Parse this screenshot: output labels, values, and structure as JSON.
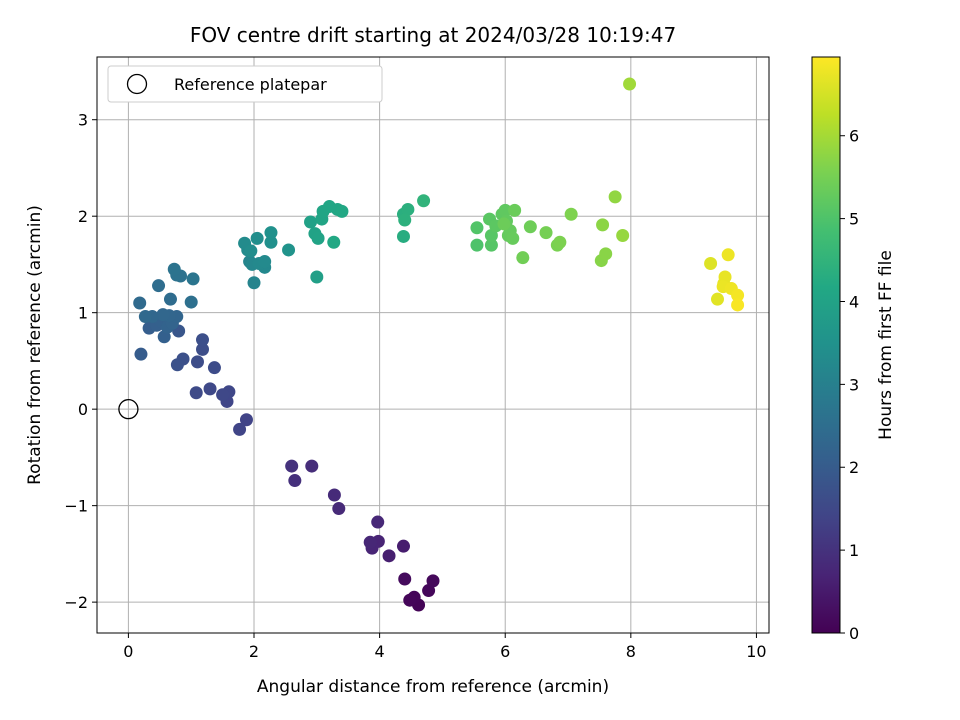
{
  "chart_data": {
    "type": "scatter",
    "title": "FOV centre drift starting at 2024/03/28 10:19:47",
    "xlabel": "Angular distance from reference (arcmin)",
    "ylabel": "Rotation from reference (arcmin)",
    "xlim": [
      -0.5,
      10.2
    ],
    "ylim": [
      -2.32,
      3.65
    ],
    "xticks": [
      0,
      2,
      4,
      6,
      8,
      10
    ],
    "yticks": [
      -2,
      -1,
      0,
      1,
      2,
      3
    ],
    "grid": true,
    "legend": {
      "placement": "top-left",
      "entries": [
        "Reference platepar"
      ]
    },
    "reference_point": {
      "x": 0,
      "y": 0
    },
    "colorbar": {
      "label": "Hours from first FF file",
      "colormap": "viridis",
      "range": [
        0,
        6.95
      ],
      "ticks": [
        0,
        1,
        2,
        3,
        4,
        5,
        6
      ]
    },
    "points": [
      {
        "x": 4.62,
        "y": -2.03,
        "h": 0.05
      },
      {
        "x": 4.55,
        "y": -1.95,
        "h": 0.08
      },
      {
        "x": 4.48,
        "y": -1.98,
        "h": 0.1
      },
      {
        "x": 4.78,
        "y": -1.88,
        "h": 0.12
      },
      {
        "x": 4.85,
        "y": -1.78,
        "h": 0.15
      },
      {
        "x": 4.4,
        "y": -1.76,
        "h": 0.2
      },
      {
        "x": 4.38,
        "y": -1.42,
        "h": 0.55
      },
      {
        "x": 4.15,
        "y": -1.52,
        "h": 0.6
      },
      {
        "x": 3.98,
        "y": -1.37,
        "h": 0.7
      },
      {
        "x": 3.88,
        "y": -1.44,
        "h": 0.72
      },
      {
        "x": 3.85,
        "y": -1.38,
        "h": 0.75
      },
      {
        "x": 3.97,
        "y": -1.17,
        "h": 0.78
      },
      {
        "x": 3.35,
        "y": -1.03,
        "h": 0.82
      },
      {
        "x": 3.28,
        "y": -0.89,
        "h": 0.85
      },
      {
        "x": 2.92,
        "y": -0.59,
        "h": 0.9
      },
      {
        "x": 2.65,
        "y": -0.74,
        "h": 0.95
      },
      {
        "x": 2.6,
        "y": -0.59,
        "h": 1.0
      },
      {
        "x": 1.88,
        "y": -0.11,
        "h": 1.4
      },
      {
        "x": 1.77,
        "y": -0.21,
        "h": 1.42
      },
      {
        "x": 1.57,
        "y": 0.08,
        "h": 1.45
      },
      {
        "x": 1.6,
        "y": 0.18,
        "h": 1.48
      },
      {
        "x": 1.5,
        "y": 0.15,
        "h": 1.5
      },
      {
        "x": 1.3,
        "y": 0.21,
        "h": 1.52
      },
      {
        "x": 1.08,
        "y": 0.17,
        "h": 1.55
      },
      {
        "x": 1.37,
        "y": 0.43,
        "h": 1.6
      },
      {
        "x": 1.1,
        "y": 0.49,
        "h": 1.62
      },
      {
        "x": 1.18,
        "y": 0.62,
        "h": 1.65
      },
      {
        "x": 1.18,
        "y": 0.72,
        "h": 1.68
      },
      {
        "x": 0.87,
        "y": 0.52,
        "h": 1.7
      },
      {
        "x": 0.78,
        "y": 0.46,
        "h": 1.72
      },
      {
        "x": 0.8,
        "y": 0.81,
        "h": 1.85
      },
      {
        "x": 0.2,
        "y": 0.57,
        "h": 2.0
      },
      {
        "x": 0.33,
        "y": 0.84,
        "h": 2.05
      },
      {
        "x": 0.45,
        "y": 0.87,
        "h": 2.1
      },
      {
        "x": 0.57,
        "y": 0.75,
        "h": 2.12
      },
      {
        "x": 0.52,
        "y": 0.91,
        "h": 2.15
      },
      {
        "x": 0.62,
        "y": 0.85,
        "h": 2.2
      },
      {
        "x": 0.7,
        "y": 0.89,
        "h": 2.22
      },
      {
        "x": 0.77,
        "y": 0.96,
        "h": 2.25
      },
      {
        "x": 0.65,
        "y": 0.97,
        "h": 2.28
      },
      {
        "x": 0.55,
        "y": 0.98,
        "h": 2.3
      },
      {
        "x": 0.38,
        "y": 0.96,
        "h": 2.32
      },
      {
        "x": 0.27,
        "y": 0.96,
        "h": 2.35
      },
      {
        "x": 0.18,
        "y": 1.1,
        "h": 2.4
      },
      {
        "x": 0.67,
        "y": 1.14,
        "h": 2.45
      },
      {
        "x": 0.48,
        "y": 1.28,
        "h": 2.48
      },
      {
        "x": 1.0,
        "y": 1.11,
        "h": 2.55
      },
      {
        "x": 0.77,
        "y": 1.39,
        "h": 2.6
      },
      {
        "x": 0.83,
        "y": 1.38,
        "h": 2.62
      },
      {
        "x": 0.73,
        "y": 1.45,
        "h": 2.65
      },
      {
        "x": 1.03,
        "y": 1.35,
        "h": 2.7
      },
      {
        "x": 2.0,
        "y": 1.31,
        "h": 3.1
      },
      {
        "x": 1.93,
        "y": 1.53,
        "h": 3.15
      },
      {
        "x": 1.97,
        "y": 1.5,
        "h": 3.2
      },
      {
        "x": 2.17,
        "y": 1.47,
        "h": 3.22
      },
      {
        "x": 2.08,
        "y": 1.51,
        "h": 3.25
      },
      {
        "x": 2.17,
        "y": 1.53,
        "h": 3.28
      },
      {
        "x": 1.9,
        "y": 1.65,
        "h": 3.3
      },
      {
        "x": 1.85,
        "y": 1.72,
        "h": 3.32
      },
      {
        "x": 1.95,
        "y": 1.64,
        "h": 3.35
      },
      {
        "x": 2.05,
        "y": 1.77,
        "h": 3.4
      },
      {
        "x": 2.27,
        "y": 1.73,
        "h": 3.45
      },
      {
        "x": 2.27,
        "y": 1.83,
        "h": 3.48
      },
      {
        "x": 2.55,
        "y": 1.65,
        "h": 3.55
      },
      {
        "x": 3.0,
        "y": 1.37,
        "h": 3.9
      },
      {
        "x": 2.9,
        "y": 1.94,
        "h": 3.95
      },
      {
        "x": 2.97,
        "y": 1.82,
        "h": 4.0
      },
      {
        "x": 3.02,
        "y": 1.77,
        "h": 4.02
      },
      {
        "x": 3.08,
        "y": 1.97,
        "h": 4.05
      },
      {
        "x": 3.1,
        "y": 2.05,
        "h": 4.08
      },
      {
        "x": 3.2,
        "y": 2.1,
        "h": 4.1
      },
      {
        "x": 3.33,
        "y": 2.07,
        "h": 4.12
      },
      {
        "x": 3.4,
        "y": 2.05,
        "h": 4.15
      },
      {
        "x": 3.27,
        "y": 1.73,
        "h": 4.18
      },
      {
        "x": 4.38,
        "y": 1.79,
        "h": 4.3
      },
      {
        "x": 4.38,
        "y": 2.02,
        "h": 4.35
      },
      {
        "x": 4.45,
        "y": 2.07,
        "h": 4.38
      },
      {
        "x": 4.4,
        "y": 1.96,
        "h": 4.4
      },
      {
        "x": 4.7,
        "y": 2.16,
        "h": 4.5
      },
      {
        "x": 5.55,
        "y": 1.7,
        "h": 5.0
      },
      {
        "x": 5.55,
        "y": 1.88,
        "h": 5.05
      },
      {
        "x": 5.78,
        "y": 1.7,
        "h": 5.1
      },
      {
        "x": 5.78,
        "y": 1.8,
        "h": 5.12
      },
      {
        "x": 5.75,
        "y": 1.97,
        "h": 5.15
      },
      {
        "x": 5.85,
        "y": 1.9,
        "h": 5.18
      },
      {
        "x": 5.95,
        "y": 2.02,
        "h": 5.2
      },
      {
        "x": 6.0,
        "y": 2.06,
        "h": 5.22
      },
      {
        "x": 6.02,
        "y": 1.95,
        "h": 5.25
      },
      {
        "x": 6.05,
        "y": 1.8,
        "h": 5.28
      },
      {
        "x": 6.08,
        "y": 1.85,
        "h": 5.3
      },
      {
        "x": 6.12,
        "y": 1.77,
        "h": 5.32
      },
      {
        "x": 6.15,
        "y": 2.06,
        "h": 5.35
      },
      {
        "x": 5.98,
        "y": 1.92,
        "h": 5.38
      },
      {
        "x": 6.4,
        "y": 1.89,
        "h": 5.4
      },
      {
        "x": 6.28,
        "y": 1.57,
        "h": 5.45
      },
      {
        "x": 6.65,
        "y": 1.83,
        "h": 5.5
      },
      {
        "x": 6.83,
        "y": 1.7,
        "h": 5.55
      },
      {
        "x": 6.87,
        "y": 1.73,
        "h": 5.58
      },
      {
        "x": 7.05,
        "y": 2.02,
        "h": 5.6
      },
      {
        "x": 7.53,
        "y": 1.54,
        "h": 5.7
      },
      {
        "x": 7.6,
        "y": 1.61,
        "h": 5.72
      },
      {
        "x": 7.55,
        "y": 1.91,
        "h": 5.75
      },
      {
        "x": 7.75,
        "y": 2.2,
        "h": 5.8
      },
      {
        "x": 7.87,
        "y": 1.8,
        "h": 5.85
      },
      {
        "x": 7.98,
        "y": 3.37,
        "h": 5.95
      },
      {
        "x": 9.27,
        "y": 1.51,
        "h": 6.6
      },
      {
        "x": 9.38,
        "y": 1.14,
        "h": 6.65
      },
      {
        "x": 9.48,
        "y": 1.3,
        "h": 6.7
      },
      {
        "x": 9.5,
        "y": 1.37,
        "h": 6.72
      },
      {
        "x": 9.47,
        "y": 1.27,
        "h": 6.75
      },
      {
        "x": 9.55,
        "y": 1.6,
        "h": 6.78
      },
      {
        "x": 9.6,
        "y": 1.25,
        "h": 6.8
      },
      {
        "x": 9.7,
        "y": 1.18,
        "h": 6.85
      },
      {
        "x": 9.7,
        "y": 1.08,
        "h": 6.9
      }
    ]
  }
}
